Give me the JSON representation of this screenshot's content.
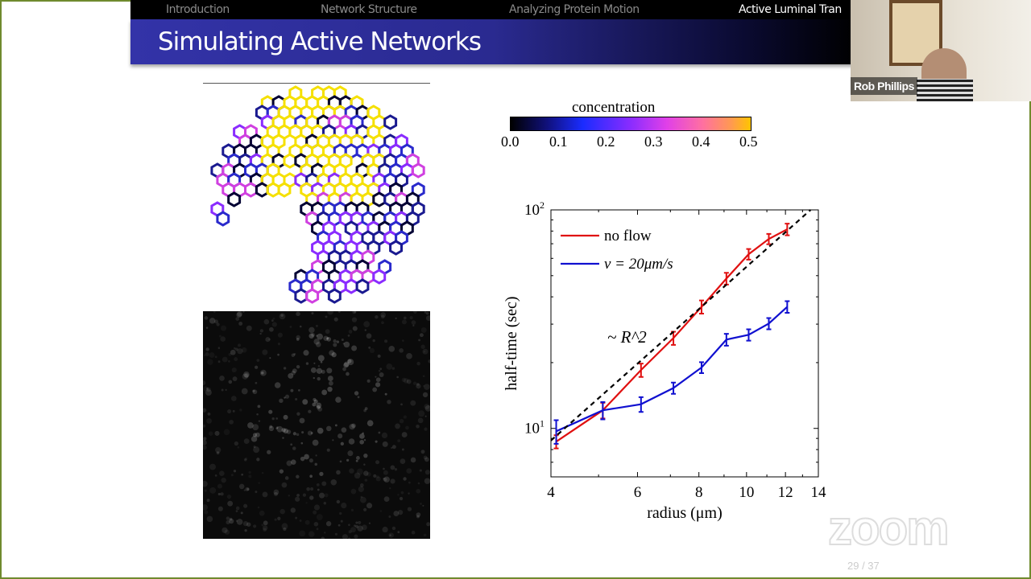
{
  "nav": {
    "items": [
      {
        "label": "Introduction",
        "active": false
      },
      {
        "label": "Network Structure",
        "active": false
      },
      {
        "label": "Analyzing Protein Motion",
        "active": false
      },
      {
        "label": "Active Luminal Tran",
        "active": true
      }
    ]
  },
  "slide": {
    "title": "Simulating Active Networks",
    "page": "29 / 37"
  },
  "video": {
    "participant": "Rob Phillips"
  },
  "watermark": "zoom",
  "colorbar": {
    "label": "concentration",
    "ticks": [
      "0.0",
      "0.1",
      "0.2",
      "0.3",
      "0.4",
      "0.5"
    ],
    "colors": [
      "#000000",
      "#1a2cff",
      "#e040e8",
      "#ff70a0",
      "#ffc400"
    ]
  },
  "chart_data": {
    "type": "line",
    "xlabel": "radius (μm)",
    "ylabel": "half-time (sec)",
    "xscale": "log",
    "yscale": "log",
    "xlim": [
      4,
      14
    ],
    "ylim": [
      6,
      100
    ],
    "xticks": [
      "4",
      "6",
      "8",
      "10",
      "12",
      "14"
    ],
    "yticks": [
      "10^1",
      "10^2"
    ],
    "legend": "top-left",
    "annotation": "~ R^2",
    "series": [
      {
        "name": "no flow",
        "color": "#e01010",
        "x": [
          4.1,
          5.1,
          6.1,
          7.1,
          8.1,
          9.1,
          10.1,
          11.1,
          12.1
        ],
        "y": [
          8.7,
          12.1,
          18.5,
          25.9,
          36,
          48.5,
          62.7,
          73.6,
          81.5
        ],
        "err": [
          0.6,
          1,
          1.3,
          1.8,
          2.5,
          3,
          3.5,
          4,
          5
        ]
      },
      {
        "name": "v = 20μm/s",
        "color": "#1010d0",
        "x": [
          4.1,
          5.1,
          6.1,
          7.1,
          8.1,
          9.1,
          10.1,
          11.1,
          12.1
        ],
        "y": [
          9.7,
          12.1,
          12.9,
          15.3,
          19,
          25.5,
          26.8,
          30.2,
          36
        ],
        "err": [
          1.2,
          1.1,
          1,
          0.9,
          1.1,
          1.6,
          1.6,
          1.8,
          2.2
        ]
      },
      {
        "name": "",
        "style": "dashed",
        "color": "#000000",
        "x": [
          4,
          13.5
        ],
        "y": [
          8.8,
          100
        ]
      }
    ]
  }
}
